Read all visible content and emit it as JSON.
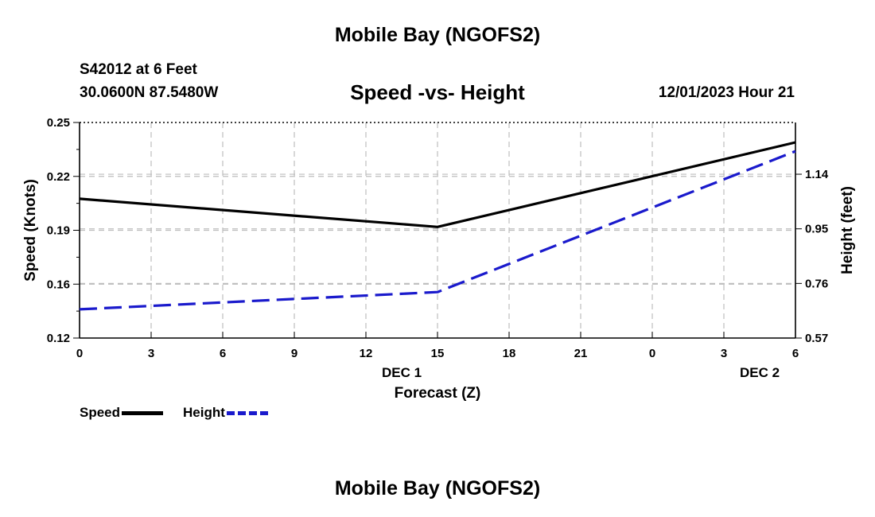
{
  "page": {
    "title_top": "Mobile Bay (NGOFS2)",
    "title_bottom": "Mobile Bay (NGOFS2)",
    "station": "S42012 at 6 Feet",
    "coords": "30.0600N  87.5480W",
    "chart_title": "Speed -vs- Height",
    "timestamp": "12/01/2023 Hour 21"
  },
  "chart_data": {
    "type": "line",
    "title": "Speed -vs- Height",
    "xlabel": "Forecast (Z)",
    "ylabel": "Speed (Knots)",
    "ylabel_right": "Height (feet)",
    "x_tick_labels": [
      "0",
      "3",
      "6",
      "9",
      "12",
      "15",
      "18",
      "21",
      "0",
      "3",
      "6"
    ],
    "x_date_labels": [
      {
        "after_tick": 4,
        "text": "DEC 1"
      },
      {
        "after_tick": 9,
        "text": "DEC 2"
      }
    ],
    "xlim": [
      0,
      30
    ],
    "ylim": [
      0.12,
      0.25
    ],
    "yticks": [
      "0.25",
      "0.22",
      "0.19",
      "0.16",
      "0.12"
    ],
    "ylim_right": [
      0.57,
      1.32
    ],
    "yticks_right": [
      "1.14",
      "0.95",
      "0.76",
      "0.57"
    ],
    "grid": true,
    "legend_position": "bottom-left",
    "series": [
      {
        "name": "Speed",
        "axis": "left",
        "color": "#000000",
        "style": "solid",
        "x": [
          0,
          15,
          30
        ],
        "values": [
          0.204,
          0.187,
          0.238
        ]
      },
      {
        "name": "Height",
        "axis": "right",
        "color": "#1a1acc",
        "style": "dashed",
        "x": [
          0,
          15,
          30
        ],
        "values": [
          0.67,
          0.73,
          1.22
        ]
      }
    ]
  }
}
